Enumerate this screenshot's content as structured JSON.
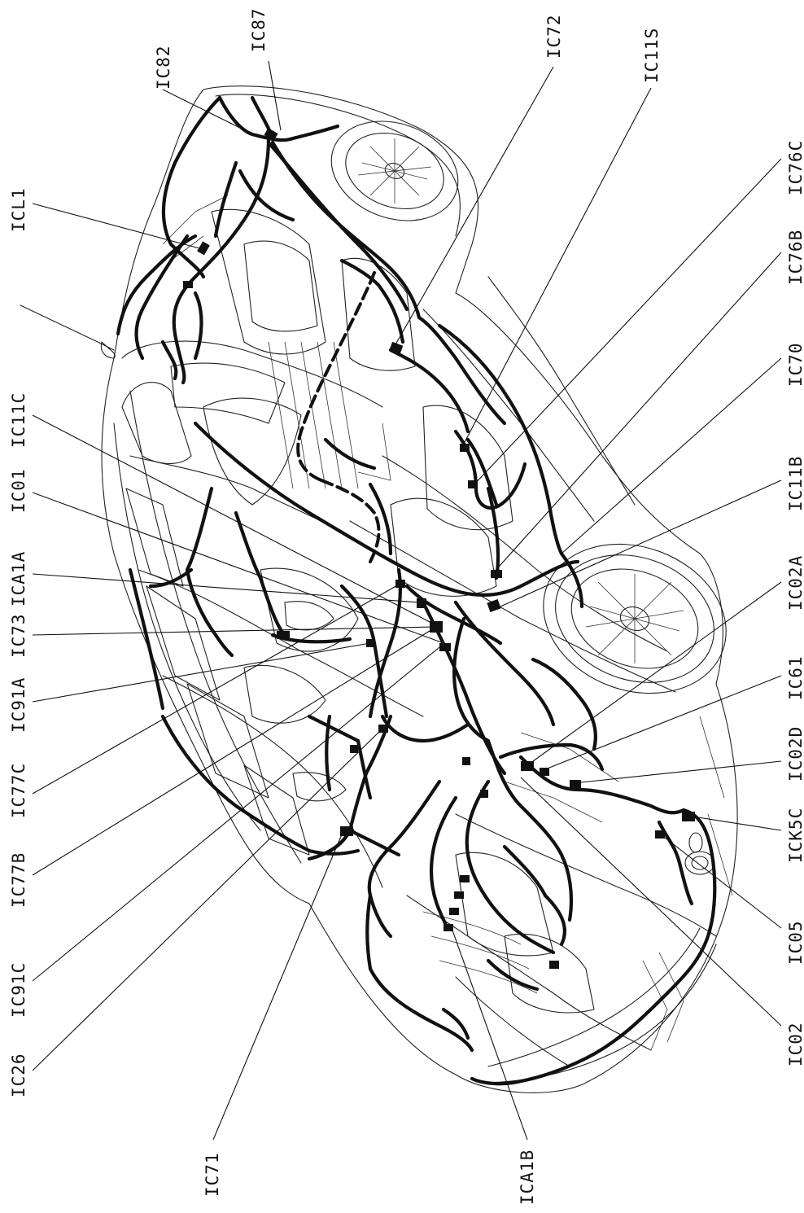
{
  "figure": {
    "description_labels_left": [
      {
        "id": "ICL1",
        "text": "ICL1"
      },
      {
        "id": "IC11C",
        "text": "IC11C"
      },
      {
        "id": "IC01",
        "text": "IC01"
      },
      {
        "id": "ICA1A",
        "text": "ICA1A"
      },
      {
        "id": "IC73",
        "text": "IC73"
      },
      {
        "id": "IC91A",
        "text": "IC91A"
      },
      {
        "id": "IC77C",
        "text": "IC77C"
      },
      {
        "id": "IC77B",
        "text": "IC77B"
      },
      {
        "id": "IC91C",
        "text": "IC91C"
      },
      {
        "id": "IC26",
        "text": "IC26"
      }
    ],
    "labels_top": [
      {
        "id": "IC82",
        "text": "IC82"
      },
      {
        "id": "IC87",
        "text": "IC87"
      },
      {
        "id": "IC72",
        "text": "IC72"
      },
      {
        "id": "IC11S",
        "text": "IC11S"
      }
    ],
    "labels_right": [
      {
        "id": "IC76C",
        "text": "IC76C"
      },
      {
        "id": "IC76B",
        "text": "IC76B"
      },
      {
        "id": "IC70",
        "text": "IC70"
      },
      {
        "id": "IC11B",
        "text": "IC11B"
      },
      {
        "id": "IC02A",
        "text": "IC02A"
      },
      {
        "id": "IC61",
        "text": "IC61"
      },
      {
        "id": "IC02D",
        "text": "IC02D"
      },
      {
        "id": "ICK5C",
        "text": "ICK5C"
      },
      {
        "id": "IC05",
        "text": "IC05"
      },
      {
        "id": "IC02",
        "text": "IC02"
      }
    ],
    "labels_bottom": [
      {
        "id": "IC71",
        "text": "IC71"
      },
      {
        "id": "ICA1B",
        "text": "ICA1B"
      }
    ]
  },
  "colors": {
    "background": "#ffffff",
    "ink": "#111111",
    "body_line": "#222222"
  }
}
